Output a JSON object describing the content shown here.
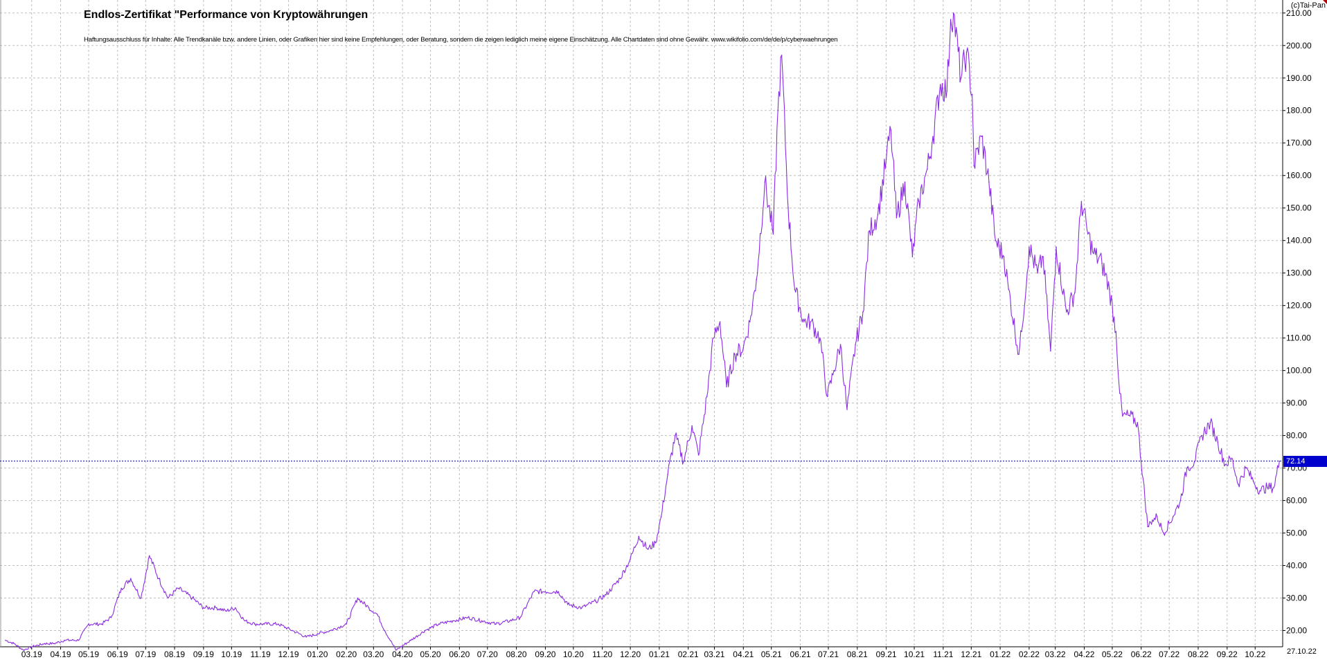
{
  "chart_data": {
    "type": "line",
    "title": "Endlos-Zertifikat \"Performance von Kryptowährungen",
    "subtitle": "Haftungsausschluss für Inhalte: Alle Trendkanäle bzw. andere Linien, oder Grafiken hier sind keine Empfehlungen, oder Beratung, sondern die zeigen lediglich meine eigene Einschätzung. Alle Chartdaten sind ohne Gewähr.  www.wikifolio.com/de/de/p/cyberwaehrungen",
    "copyright": "(c)Tai-Pan",
    "last_value_label": "72.14",
    "last_value": 72.14,
    "date_label": "27.10.22",
    "ylim": [
      15,
      214
    ],
    "yticks": [
      20,
      30,
      40,
      50,
      60,
      70,
      80,
      90,
      100,
      110,
      120,
      130,
      140,
      150,
      160,
      170,
      180,
      190,
      200,
      210
    ],
    "ytick_labels": [
      "20.00",
      "30.00",
      "40.00",
      "50.00",
      "60.00",
      "70.00",
      "80.00",
      "90.00",
      "100.00",
      "110.00",
      "120.00",
      "130.00",
      "140.00",
      "150.00",
      "160.00",
      "170.00",
      "180.00",
      "190.00",
      "200.00",
      "210.00"
    ],
    "xlim": [
      "2019-02-01",
      "2022-10-29"
    ],
    "xticks": [
      "2019-03-01",
      "2019-04-01",
      "2019-05-01",
      "2019-06-01",
      "2019-07-01",
      "2019-08-01",
      "2019-09-01",
      "2019-10-01",
      "2019-11-01",
      "2019-12-01",
      "2020-01-01",
      "2020-02-01",
      "2020-03-01",
      "2020-04-01",
      "2020-05-01",
      "2020-06-01",
      "2020-07-01",
      "2020-08-01",
      "2020-09-01",
      "2020-10-01",
      "2020-11-01",
      "2020-12-01",
      "2021-01-01",
      "2021-02-01",
      "2021-03-01",
      "2021-04-01",
      "2021-05-01",
      "2021-06-01",
      "2021-07-01",
      "2021-08-01",
      "2021-09-01",
      "2021-10-01",
      "2021-11-01",
      "2021-12-01",
      "2022-01-01",
      "2022-02-01",
      "2022-03-01",
      "2022-04-01",
      "2022-05-01",
      "2022-06-01",
      "2022-07-01",
      "2022-08-01",
      "2022-09-01",
      "2022-10-01"
    ],
    "xtick_labels": [
      "03.19",
      "04.19",
      "05.19",
      "06.19",
      "07.19",
      "08.19",
      "09.19",
      "10.19",
      "11.19",
      "12.19",
      "01.20",
      "02.20",
      "03.20",
      "04.20",
      "05.20",
      "06.20",
      "07.20",
      "08.20",
      "09.20",
      "10.20",
      "11.20",
      "12.20",
      "01.21",
      "02.21",
      "03.21",
      "04.21",
      "05.21",
      "06.21",
      "07.21",
      "08.21",
      "09.21",
      "10.21",
      "11.21",
      "12.21",
      "01.22",
      "02.22",
      "03.22",
      "04.22",
      "05.22",
      "06.22",
      "07.22",
      "08.22",
      "09.22",
      "10.22"
    ],
    "grid": true,
    "series": [
      {
        "color": "#8a2be2",
        "x": [
          "2019-02-01",
          "2019-02-10",
          "2019-02-20",
          "2019-03-01",
          "2019-03-15",
          "2019-03-25",
          "2019-04-05",
          "2019-04-20",
          "2019-05-01",
          "2019-05-15",
          "2019-05-25",
          "2019-06-05",
          "2019-06-15",
          "2019-06-26",
          "2019-07-05",
          "2019-07-15",
          "2019-07-25",
          "2019-08-05",
          "2019-08-20",
          "2019-09-01",
          "2019-09-15",
          "2019-09-25",
          "2019-10-05",
          "2019-10-15",
          "2019-10-26",
          "2019-11-05",
          "2019-11-20",
          "2019-12-05",
          "2019-12-20",
          "2020-01-01",
          "2020-01-15",
          "2020-02-01",
          "2020-02-13",
          "2020-02-25",
          "2020-03-05",
          "2020-03-13",
          "2020-03-25",
          "2020-04-10",
          "2020-04-25",
          "2020-05-10",
          "2020-05-25",
          "2020-06-10",
          "2020-06-25",
          "2020-07-10",
          "2020-07-25",
          "2020-08-05",
          "2020-08-20",
          "2020-09-01",
          "2020-09-15",
          "2020-09-25",
          "2020-10-10",
          "2020-10-25",
          "2020-11-05",
          "2020-11-20",
          "2020-12-01",
          "2020-12-10",
          "2020-12-20",
          "2020-12-28",
          "2021-01-03",
          "2021-01-10",
          "2021-01-18",
          "2021-01-27",
          "2021-02-05",
          "2021-02-12",
          "2021-02-21",
          "2021-02-28",
          "2021-03-07",
          "2021-03-14",
          "2021-03-23",
          "2021-04-01",
          "2021-04-08",
          "2021-04-15",
          "2021-04-24",
          "2021-05-03",
          "2021-05-08",
          "2021-05-12",
          "2021-05-19",
          "2021-05-26",
          "2021-06-05",
          "2021-06-12",
          "2021-06-22",
          "2021-06-30",
          "2021-07-07",
          "2021-07-14",
          "2021-07-21",
          "2021-07-30",
          "2021-08-07",
          "2021-08-14",
          "2021-08-23",
          "2021-09-01",
          "2021-09-06",
          "2021-09-12",
          "2021-09-21",
          "2021-09-29",
          "2021-10-06",
          "2021-10-15",
          "2021-10-21",
          "2021-10-29",
          "2021-11-05",
          "2021-11-09",
          "2021-11-12",
          "2021-11-20",
          "2021-11-26",
          "2021-12-02",
          "2021-12-04",
          "2021-12-12",
          "2021-12-20",
          "2021-12-27",
          "2022-01-05",
          "2022-01-10",
          "2022-01-21",
          "2022-01-24",
          "2022-02-01",
          "2022-02-10",
          "2022-02-16",
          "2022-02-24",
          "2022-03-02",
          "2022-03-13",
          "2022-03-22",
          "2022-03-29",
          "2022-04-05",
          "2022-04-11",
          "2022-04-20",
          "2022-04-28",
          "2022-05-05",
          "2022-05-09",
          "2022-05-12",
          "2022-05-20",
          "2022-05-28",
          "2022-06-08",
          "2022-06-13",
          "2022-06-18",
          "2022-06-25",
          "2022-07-05",
          "2022-07-13",
          "2022-07-20",
          "2022-07-28",
          "2022-08-05",
          "2022-08-14",
          "2022-08-22",
          "2022-08-30",
          "2022-09-06",
          "2022-09-13",
          "2022-09-21",
          "2022-09-29",
          "2022-10-06",
          "2022-10-14",
          "2022-10-21",
          "2022-10-27"
        ],
        "values": [
          17,
          16,
          14,
          15,
          16,
          16,
          17,
          17,
          22,
          22,
          24,
          33,
          36,
          30,
          43,
          36,
          30,
          33,
          30,
          27,
          27,
          26,
          27,
          23,
          22,
          22,
          22,
          20,
          18,
          19,
          20,
          22,
          30,
          27,
          25,
          20,
          14,
          17,
          20,
          22,
          23,
          24,
          23,
          22,
          23,
          24,
          32,
          32,
          32,
          28,
          27,
          29,
          31,
          36,
          42,
          49,
          45,
          47,
          55,
          68,
          80,
          72,
          83,
          74,
          92,
          110,
          115,
          95,
          105,
          107,
          115,
          128,
          158,
          142,
          180,
          197,
          150,
          125,
          115,
          115,
          110,
          92,
          100,
          108,
          88,
          108,
          118,
          143,
          148,
          165,
          174,
          147,
          158,
          135,
          152,
          162,
          172,
          188,
          186,
          208,
          210,
          190,
          198,
          185,
          163,
          172,
          158,
          140,
          135,
          125,
          105,
          112,
          138,
          130,
          135,
          106,
          138,
          118,
          124,
          152,
          142,
          136,
          133,
          125,
          112,
          93,
          86,
          86,
          84,
          52,
          54,
          55,
          50,
          55,
          60,
          70,
          72,
          80,
          84,
          78,
          71,
          73,
          65,
          70,
          66,
          63,
          64,
          64,
          72.14
        ]
      }
    ]
  }
}
